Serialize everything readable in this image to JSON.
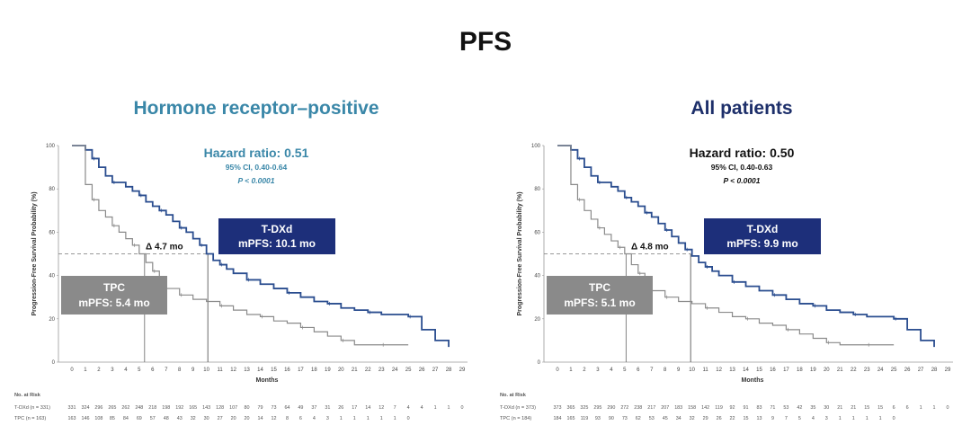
{
  "title": "PFS",
  "chart_data": [
    {
      "type": "line",
      "title": "Hormone receptor–positive",
      "title_color": "#3a87a8",
      "xlabel": "Months",
      "ylabel": "Progression-Free Survival Probability (%)",
      "xlim": [
        0,
        29
      ],
      "ylim": [
        0,
        100
      ],
      "x_ticks": [
        "0",
        "1",
        "2",
        "3",
        "4",
        "5",
        "6",
        "7",
        "8",
        "9",
        "10",
        "11",
        "12",
        "13",
        "14",
        "15",
        "16",
        "17",
        "18",
        "19",
        "20",
        "21",
        "22",
        "23",
        "24",
        "25",
        "26",
        "27",
        "28",
        "29"
      ],
      "y_ticks": [
        "0",
        "20",
        "40",
        "60",
        "80",
        "100"
      ],
      "hazard_ratio": "Hazard ratio: 0.51",
      "ci": "95% CI, 0.40-0.64",
      "p_value": "P < 0.0001",
      "stats_color": "#3a87a8",
      "delta_label": "Δ 4.7 mo",
      "median_line": 50,
      "medians": [
        5.4,
        10.1
      ],
      "series": [
        {
          "name": "T-DXd",
          "box_label": "T-DXd",
          "box_value": "mPFS: 10.1 mo",
          "color": "#2a4d8f",
          "box_color": "#1d2f7a",
          "x": [
            0,
            1,
            1.5,
            2,
            2.5,
            3,
            4,
            4.5,
            5,
            5.5,
            6,
            6.5,
            7,
            7.5,
            8,
            8.5,
            9,
            9.5,
            10,
            10.5,
            11,
            11.5,
            12,
            13,
            14,
            15,
            16,
            17,
            18,
            19,
            20,
            21,
            22,
            23,
            24,
            25,
            26,
            27,
            28
          ],
          "y": [
            100,
            98,
            94,
            90,
            86,
            83,
            81,
            79,
            77,
            74,
            72,
            70,
            68,
            65,
            62,
            60,
            57,
            54,
            50,
            47,
            45,
            43,
            41,
            38,
            36,
            34,
            32,
            30,
            28,
            27,
            25,
            24,
            23,
            22,
            22,
            21,
            15,
            10,
            7
          ]
        },
        {
          "name": "TPC",
          "box_label": "TPC",
          "box_value": "mPFS: 5.4 mo",
          "color": "#8a8a8a",
          "box_color": "#8a8a8a",
          "x": [
            0,
            1,
            1.5,
            2,
            2.5,
            3,
            3.5,
            4,
            4.5,
            5,
            5.5,
            6,
            6.5,
            7,
            8,
            9,
            10,
            11,
            12,
            13,
            14,
            15,
            16,
            17,
            18,
            19,
            20,
            21,
            22,
            23,
            24,
            25
          ],
          "y": [
            100,
            82,
            75,
            70,
            67,
            63,
            60,
            57,
            54,
            50,
            46,
            42,
            38,
            34,
            31,
            29,
            28,
            26,
            24,
            22,
            21,
            19,
            18,
            16,
            14,
            12,
            10,
            8,
            8,
            8,
            8,
            8
          ]
        }
      ],
      "risk": {
        "header": "No. at Risk",
        "rows": [
          {
            "label": "T-DXd (n = 331)",
            "values": [
              "331",
              "324",
              "296",
              "265",
              "262",
              "248",
              "218",
              "198",
              "192",
              "165",
              "143",
              "128",
              "107",
              "80",
              "79",
              "73",
              "64",
              "49",
              "37",
              "31",
              "26",
              "17",
              "14",
              "12",
              "7",
              "4",
              "4",
              "1",
              "1",
              "0"
            ]
          },
          {
            "label": "TPC (n = 163)",
            "values": [
              "163",
              "146",
              "108",
              "85",
              "84",
              "69",
              "57",
              "48",
              "43",
              "32",
              "30",
              "27",
              "20",
              "20",
              "14",
              "12",
              "8",
              "6",
              "4",
              "3",
              "1",
              "1",
              "1",
              "1",
              "1",
              "0",
              "",
              "",
              "",
              ""
            ]
          }
        ]
      }
    },
    {
      "type": "line",
      "title": "All patients",
      "title_color": "#1d2f6a",
      "xlabel": "Months",
      "ylabel": "Progression-Free Survival Probability (%)",
      "xlim": [
        0,
        29
      ],
      "ylim": [
        0,
        100
      ],
      "x_ticks": [
        "0",
        "1",
        "2",
        "3",
        "4",
        "5",
        "6",
        "7",
        "8",
        "9",
        "10",
        "11",
        "12",
        "13",
        "14",
        "15",
        "16",
        "17",
        "18",
        "19",
        "20",
        "21",
        "22",
        "23",
        "24",
        "25",
        "26",
        "27",
        "28",
        "29"
      ],
      "y_ticks": [
        "0",
        "20",
        "40",
        "60",
        "80",
        "100"
      ],
      "hazard_ratio": "Hazard ratio: 0.50",
      "ci": "95% CI, 0.40-0.63",
      "p_value": "P < 0.0001",
      "stats_color": "#111111",
      "delta_label": "Δ 4.8 mo",
      "median_line": 50,
      "medians": [
        5.1,
        9.9
      ],
      "series": [
        {
          "name": "T-DXd",
          "box_label": "T-DXd",
          "box_value": "mPFS: 9.9 mo",
          "color": "#2a4d8f",
          "box_color": "#1d2f7a",
          "x": [
            0,
            1,
            1.5,
            2,
            2.5,
            3,
            4,
            4.5,
            5,
            5.5,
            6,
            6.5,
            7,
            7.5,
            8,
            8.5,
            9,
            9.5,
            10,
            10.5,
            11,
            11.5,
            12,
            13,
            14,
            15,
            16,
            17,
            18,
            19,
            20,
            21,
            22,
            23,
            24,
            25,
            26,
            27,
            28
          ],
          "y": [
            100,
            98,
            94,
            90,
            86,
            83,
            81,
            79,
            76,
            74,
            72,
            69,
            67,
            64,
            61,
            58,
            55,
            52,
            49,
            46,
            44,
            42,
            40,
            37,
            35,
            33,
            31,
            29,
            27,
            26,
            24,
            23,
            22,
            21,
            21,
            20,
            15,
            10,
            7
          ]
        },
        {
          "name": "TPC",
          "box_label": "TPC",
          "box_value": "mPFS: 5.1 mo",
          "color": "#8a8a8a",
          "box_color": "#8a8a8a",
          "x": [
            0,
            1,
            1.5,
            2,
            2.5,
            3,
            3.5,
            4,
            4.5,
            5,
            5.5,
            6,
            6.5,
            7,
            8,
            9,
            10,
            11,
            12,
            13,
            14,
            15,
            16,
            17,
            18,
            19,
            20,
            21,
            22,
            23,
            24,
            25
          ],
          "y": [
            100,
            82,
            75,
            70,
            66,
            62,
            59,
            56,
            53,
            50,
            45,
            41,
            37,
            33,
            30,
            28,
            27,
            25,
            23,
            21,
            20,
            18,
            17,
            15,
            13,
            11,
            9,
            8,
            8,
            8,
            8,
            8
          ]
        }
      ],
      "risk": {
        "header": "No. at Risk",
        "rows": [
          {
            "label": "T-DXd (n = 373)",
            "values": [
              "373",
              "365",
              "325",
              "295",
              "290",
              "272",
              "238",
              "217",
              "207",
              "183",
              "158",
              "142",
              "119",
              "92",
              "91",
              "83",
              "71",
              "53",
              "42",
              "35",
              "30",
              "21",
              "21",
              "15",
              "15",
              "6",
              "6",
              "1",
              "1",
              "0"
            ]
          },
          {
            "label": "TPC (n = 184)",
            "values": [
              "184",
              "165",
              "119",
              "93",
              "90",
              "73",
              "62",
              "53",
              "45",
              "34",
              "32",
              "29",
              "26",
              "22",
              "15",
              "13",
              "9",
              "7",
              "5",
              "4",
              "3",
              "1",
              "1",
              "1",
              "1",
              "0",
              "",
              "",
              "",
              ""
            ]
          }
        ]
      }
    }
  ]
}
